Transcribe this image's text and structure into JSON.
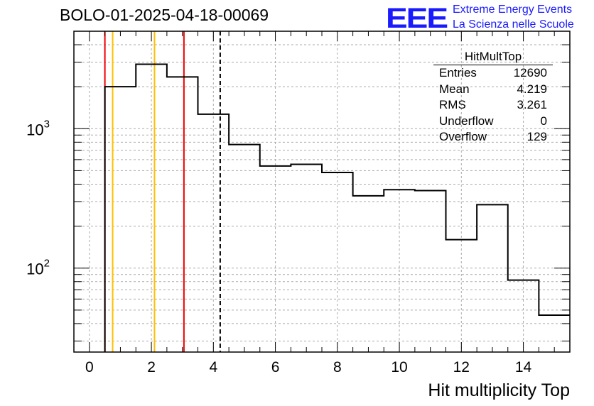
{
  "header": {
    "run_title": "BOLO-01-2025-04-18-00069",
    "logo_text": "EEE",
    "logo_line1": "Extreme Energy Events",
    "logo_line2": "La Scienza nelle Scuole"
  },
  "stats": {
    "name": "HitMultTop",
    "rows": [
      {
        "label": "Entries",
        "value": "12690"
      },
      {
        "label": "Mean",
        "value": "4.219"
      },
      {
        "label": "RMS",
        "value": "3.261"
      },
      {
        "label": "Underflow",
        "value": "0"
      },
      {
        "label": "Overflow",
        "value": "129"
      }
    ]
  },
  "colors": {
    "histogram": "#000000",
    "red_line": "#ee0000",
    "orange_line": "#ffc000",
    "grid": "#aaaaaa",
    "logo": "#1a1aff"
  },
  "chart_data": {
    "type": "histogram",
    "title": "BOLO-01-2025-04-18-00069",
    "xlabel": "Hit multiplicity Top",
    "ylabel": "",
    "xlim": [
      -0.5,
      15.5
    ],
    "ylim": [
      25,
      5000
    ],
    "yscale": "log",
    "grid": true,
    "x_ticks": [
      0,
      2,
      4,
      6,
      8,
      10,
      12,
      14
    ],
    "y_tick_labels": [
      {
        "value": 100,
        "base": "10",
        "exp": "2"
      },
      {
        "value": 1000,
        "base": "10",
        "exp": "3"
      }
    ],
    "bin_edges": [
      -0.5,
      0.5,
      1.5,
      2.5,
      3.5,
      4.5,
      5.5,
      6.5,
      7.5,
      8.5,
      9.5,
      10.5,
      11.5,
      12.5,
      13.5,
      14.5,
      15.5
    ],
    "counts": [
      0,
      2000,
      2900,
      2350,
      1270,
      770,
      540,
      555,
      485,
      330,
      365,
      360,
      160,
      285,
      82,
      46
    ],
    "vertical_lines": [
      {
        "x": 0.5,
        "color": "#ee0000",
        "style": "solid"
      },
      {
        "x": 0.75,
        "color": "#ffc000",
        "style": "solid"
      },
      {
        "x": 2.1,
        "color": "#ffc000",
        "style": "solid"
      },
      {
        "x": 3.05,
        "color": "#ee0000",
        "style": "solid"
      },
      {
        "x": 4.22,
        "color": "#000000",
        "style": "dashed"
      }
    ]
  }
}
